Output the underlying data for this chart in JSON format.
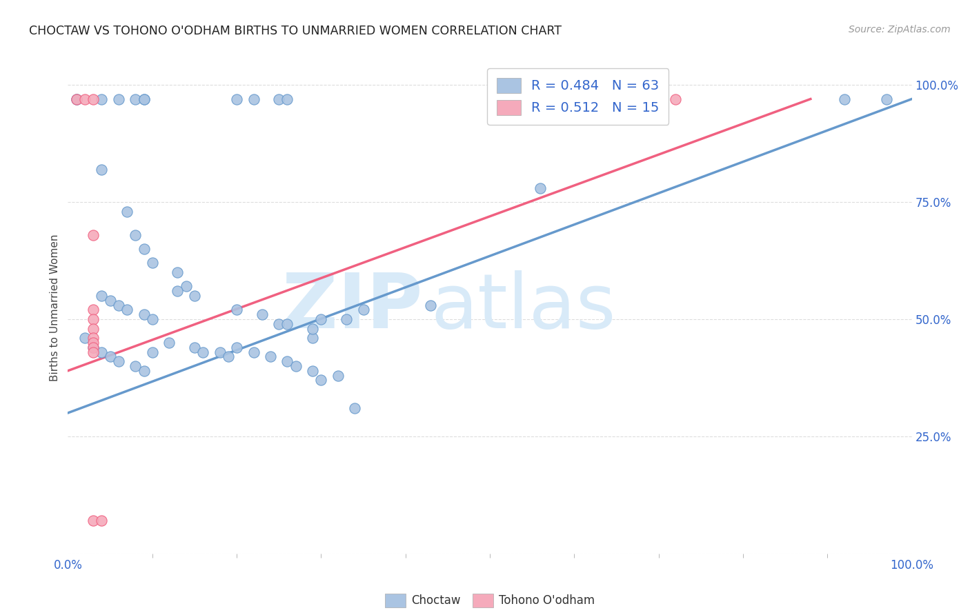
{
  "title": "CHOCTAW VS TOHONO O'ODHAM BIRTHS TO UNMARRIED WOMEN CORRELATION CHART",
  "source": "Source: ZipAtlas.com",
  "ylabel": "Births to Unmarried Women",
  "xlim": [
    0.0,
    1.0
  ],
  "ylim": [
    0.0,
    1.05
  ],
  "y_ticks": [
    0.0,
    0.25,
    0.5,
    0.75,
    1.0
  ],
  "x_tick_left_label": "0.0%",
  "x_tick_right_label": "100.0%",
  "y_tick_labels_right": [
    "",
    "25.0%",
    "50.0%",
    "75.0%",
    "100.0%"
  ],
  "choctaw_R": 0.484,
  "choctaw_N": 63,
  "tohono_R": 0.512,
  "tohono_N": 15,
  "choctaw_color": "#aac4e2",
  "tohono_color": "#f5aabb",
  "choctaw_edge_color": "#6699cc",
  "tohono_edge_color": "#f06080",
  "choctaw_line_color": "#6699cc",
  "tohono_line_color": "#f06080",
  "watermark_zip": "ZIP",
  "watermark_atlas": "atlas",
  "watermark_color": "#d8eaf8",
  "background_color": "#ffffff",
  "grid_color": "#dddddd",
  "choctaw_points": [
    [
      0.01,
      0.97
    ],
    [
      0.01,
      0.97
    ],
    [
      0.04,
      0.97
    ],
    [
      0.06,
      0.97
    ],
    [
      0.08,
      0.97
    ],
    [
      0.09,
      0.97
    ],
    [
      0.09,
      0.97
    ],
    [
      0.2,
      0.97
    ],
    [
      0.22,
      0.97
    ],
    [
      0.25,
      0.97
    ],
    [
      0.26,
      0.97
    ],
    [
      0.65,
      0.97
    ],
    [
      0.66,
      0.97
    ],
    [
      0.92,
      0.97
    ],
    [
      0.97,
      0.97
    ],
    [
      0.04,
      0.82
    ],
    [
      0.07,
      0.73
    ],
    [
      0.08,
      0.68
    ],
    [
      0.09,
      0.65
    ],
    [
      0.1,
      0.62
    ],
    [
      0.13,
      0.6
    ],
    [
      0.14,
      0.57
    ],
    [
      0.04,
      0.55
    ],
    [
      0.05,
      0.54
    ],
    [
      0.06,
      0.53
    ],
    [
      0.07,
      0.52
    ],
    [
      0.09,
      0.51
    ],
    [
      0.1,
      0.5
    ],
    [
      0.13,
      0.56
    ],
    [
      0.15,
      0.55
    ],
    [
      0.2,
      0.52
    ],
    [
      0.23,
      0.51
    ],
    [
      0.25,
      0.49
    ],
    [
      0.26,
      0.49
    ],
    [
      0.29,
      0.46
    ],
    [
      0.29,
      0.48
    ],
    [
      0.3,
      0.5
    ],
    [
      0.33,
      0.5
    ],
    [
      0.35,
      0.52
    ],
    [
      0.43,
      0.53
    ],
    [
      0.56,
      0.78
    ],
    [
      0.02,
      0.46
    ],
    [
      0.03,
      0.44
    ],
    [
      0.04,
      0.43
    ],
    [
      0.05,
      0.42
    ],
    [
      0.06,
      0.41
    ],
    [
      0.08,
      0.4
    ],
    [
      0.09,
      0.39
    ],
    [
      0.1,
      0.43
    ],
    [
      0.12,
      0.45
    ],
    [
      0.15,
      0.44
    ],
    [
      0.16,
      0.43
    ],
    [
      0.18,
      0.43
    ],
    [
      0.19,
      0.42
    ],
    [
      0.2,
      0.44
    ],
    [
      0.22,
      0.43
    ],
    [
      0.24,
      0.42
    ],
    [
      0.26,
      0.41
    ],
    [
      0.27,
      0.4
    ],
    [
      0.29,
      0.39
    ],
    [
      0.3,
      0.37
    ],
    [
      0.32,
      0.38
    ],
    [
      0.34,
      0.31
    ]
  ],
  "tohono_points": [
    [
      0.01,
      0.97
    ],
    [
      0.02,
      0.97
    ],
    [
      0.03,
      0.97
    ],
    [
      0.58,
      0.97
    ],
    [
      0.72,
      0.97
    ],
    [
      0.03,
      0.68
    ],
    [
      0.03,
      0.52
    ],
    [
      0.03,
      0.5
    ],
    [
      0.03,
      0.48
    ],
    [
      0.03,
      0.46
    ],
    [
      0.03,
      0.45
    ],
    [
      0.03,
      0.44
    ],
    [
      0.03,
      0.43
    ],
    [
      0.03,
      0.07
    ],
    [
      0.04,
      0.07
    ]
  ],
  "choctaw_trendline_x": [
    0.0,
    1.0
  ],
  "choctaw_trendline_y": [
    0.3,
    0.97
  ],
  "tohono_trendline_x": [
    0.0,
    0.88
  ],
  "tohono_trendline_y": [
    0.39,
    0.97
  ]
}
